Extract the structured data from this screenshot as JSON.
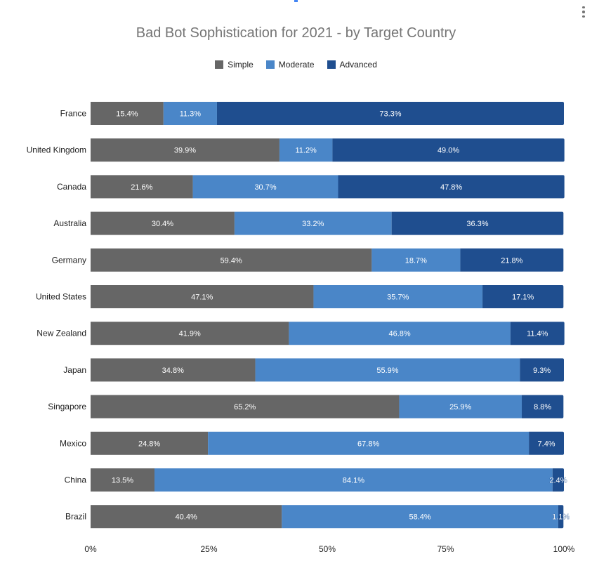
{
  "menu_icon": "more-vert-icon",
  "chart_data": {
    "type": "bar",
    "orientation": "horizontal",
    "stacked": "percent",
    "title": "Bad Bot Sophistication for 2021 - by Target Country",
    "legend_position": "top",
    "categories": [
      "France",
      "United Kingdom",
      "Canada",
      "Australia",
      "Germany",
      "United States",
      "New Zealand",
      "Japan",
      "Singapore",
      "Mexico",
      "China",
      "Brazil"
    ],
    "series": [
      {
        "name": "Simple",
        "color": "#666666",
        "values": [
          15.4,
          39.9,
          21.6,
          30.4,
          59.4,
          47.1,
          41.9,
          34.8,
          65.2,
          24.8,
          13.5,
          40.4
        ],
        "labels": [
          "15.4%",
          "39.9%",
          "21.6%",
          "30.4%",
          "59.4%",
          "47.1%",
          "41.9%",
          "34.8%",
          "65.2%",
          "24.8%",
          "13.5%",
          "40.4%"
        ]
      },
      {
        "name": "Moderate",
        "color": "#4a86c8",
        "values": [
          11.3,
          11.2,
          30.7,
          33.2,
          18.7,
          35.7,
          46.8,
          55.9,
          25.9,
          67.8,
          84.1,
          58.4
        ],
        "labels": [
          "11.3%",
          "11.2%",
          "30.7%",
          "33.2%",
          "18.7%",
          "35.7%",
          "46.8%",
          "55.9%",
          "25.9%",
          "67.8%",
          "84.1%",
          "58.4%"
        ]
      },
      {
        "name": "Advanced",
        "color": "#1f4e8f",
        "values": [
          73.3,
          49.0,
          47.8,
          36.3,
          21.8,
          17.1,
          11.4,
          9.3,
          8.8,
          7.4,
          2.4,
          1.1
        ],
        "labels": [
          "73.3%",
          "49.0%",
          "47.8%",
          "36.3%",
          "21.8%",
          "17.1%",
          "11.4%",
          "9.3%",
          "8.8%",
          "7.4%",
          "2.4%",
          "1.1%"
        ]
      }
    ],
    "x_ticks": [
      "0%",
      "25%",
      "50%",
      "75%",
      "100%"
    ],
    "xlim": [
      0,
      100
    ],
    "grid": false
  }
}
